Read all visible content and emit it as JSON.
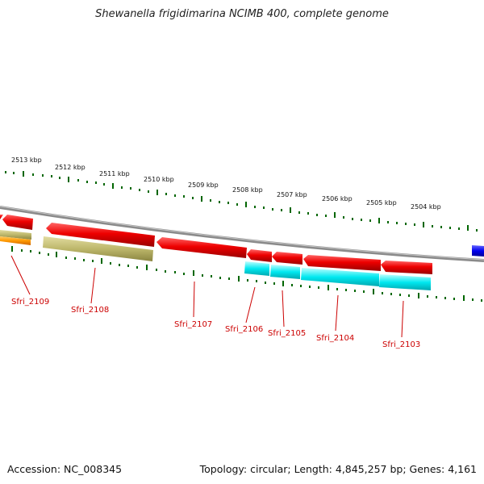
{
  "title": "Shewanella frigidimarina NCIMB 400, complete genome",
  "footer": {
    "accession": "Accession: NC_008345",
    "summary": "Topology: circular; Length: 4,845,257 bp; Genes: 4,161"
  },
  "kbp_labels": [
    "2513 kbp",
    "2512 kbp",
    "2511 kbp",
    "2510 kbp",
    "2509 kbp",
    "2508 kbp",
    "2507 kbp",
    "2506 kbp",
    "2505 kbp",
    "2504 kbp"
  ],
  "gene_labels": [
    "Sfri_2109",
    "Sfri_2108",
    "Sfri_2107",
    "Sfri_2106",
    "Sfri_2105",
    "Sfri_2104",
    "Sfri_2103"
  ],
  "colors": {
    "cds_red": "#e00000",
    "cog_cyan": "#00e8f0",
    "cog_khaki": "#bdb76b",
    "cog_orange": "#ff9900",
    "cog_blue": "#0000ee",
    "backbone": "#888888",
    "tick_green": "#006600",
    "label_red": "#cc0000"
  }
}
